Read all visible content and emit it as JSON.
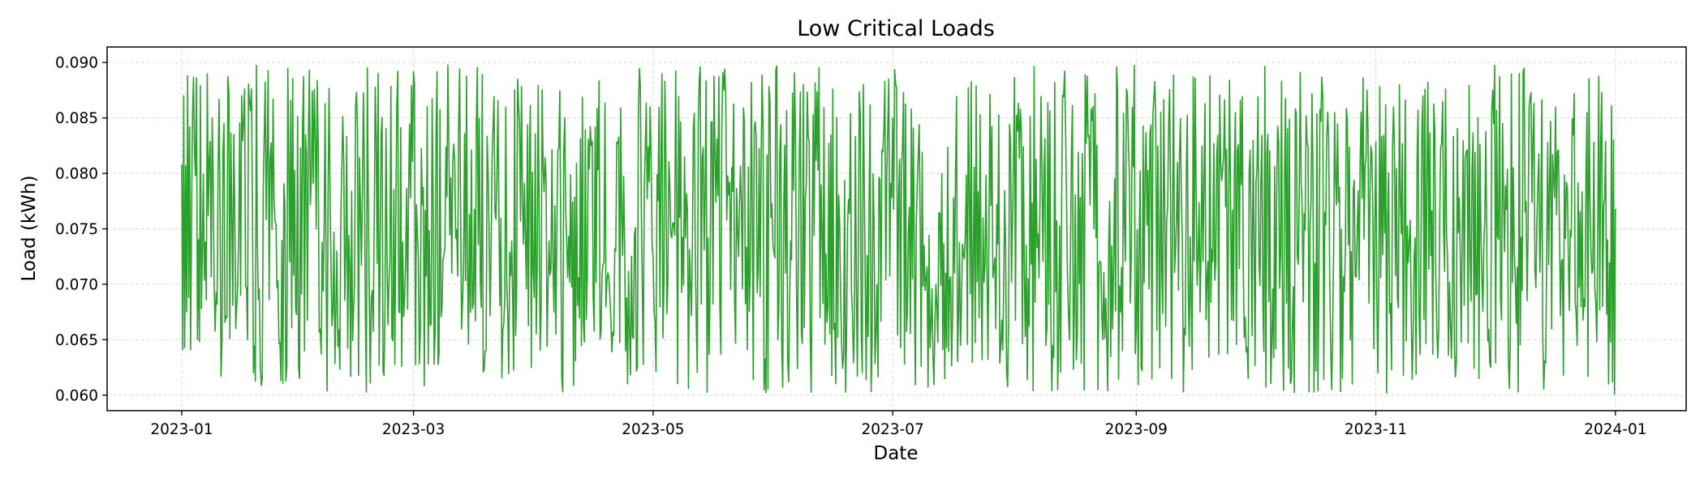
{
  "chart_data": {
    "type": "line",
    "title": "Low Critical Loads",
    "xlabel": "Date",
    "ylabel": "Load (kWh)",
    "x_range": [
      "2022-12-13",
      "2024-01-19"
    ],
    "x_ticks": [
      "2023-01",
      "2023-03",
      "2023-05",
      "2023-07",
      "2023-09",
      "2023-11",
      "2024-01"
    ],
    "ylim": [
      0.0586,
      0.0914
    ],
    "y_ticks": [
      "0.060",
      "0.065",
      "0.070",
      "0.075",
      "0.080",
      "0.085",
      "0.090"
    ],
    "grid": true,
    "series": [
      {
        "name": "",
        "color": "#2ca02c",
        "start": "2023-01-01 00:00",
        "end": "2024-01-01 00:00",
        "interval_hours": 6,
        "values_approx": "approximately uniform random load between 0.060 and 0.090 kWh at 6-hour intervals throughout 2023",
        "first_values": [
          0.0808,
          0.0641,
          0.087,
          0.0643,
          0.0807,
          0.0675,
          0.0888,
          0.0688,
          0.0842,
          0.0641
        ],
        "last_values": [
          0.0648,
          0.0861,
          0.0612,
          0.083,
          0.0601,
          0.0768
        ]
      }
    ]
  }
}
